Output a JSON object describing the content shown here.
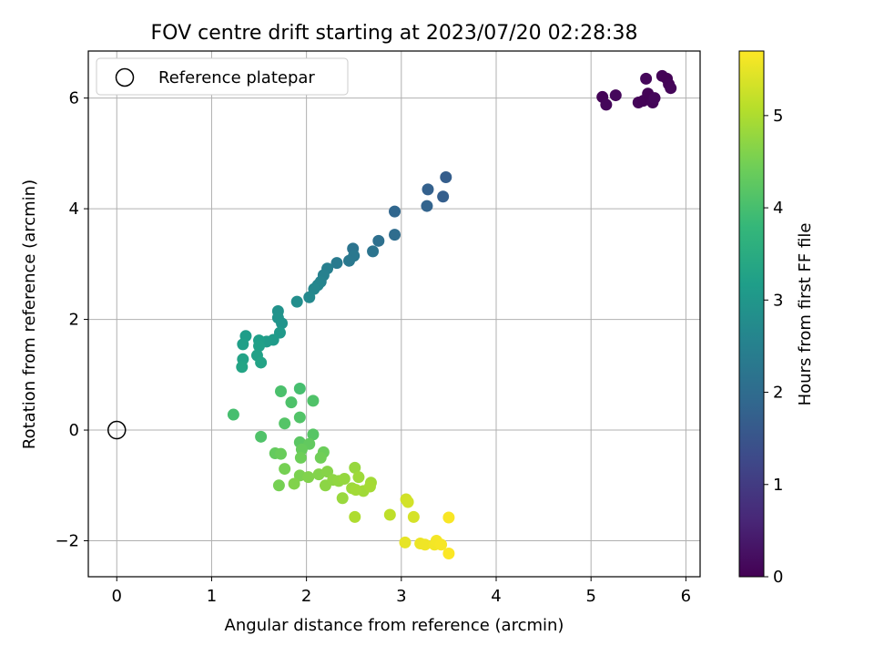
{
  "chart_data": {
    "type": "scatter",
    "title": "FOV centre drift starting at 2023/07/20 02:28:38",
    "xlabel": "Angular distance from reference (arcmin)",
    "ylabel": "Rotation from reference (arcmin)",
    "xlim": [
      -0.3,
      6.15
    ],
    "ylim": [
      -2.65,
      6.85
    ],
    "xticks": [
      0,
      1,
      2,
      3,
      4,
      5,
      6
    ],
    "yticks": [
      -2,
      0,
      2,
      4,
      6
    ],
    "ytick_labels": [
      "−2",
      "0",
      "2",
      "4",
      "6"
    ],
    "grid": true,
    "legend": {
      "placement": "top-left",
      "entries": [
        "Reference platepar"
      ]
    },
    "reference": {
      "x": 0,
      "y": 0,
      "label": "Reference platepar"
    },
    "colorbar": {
      "label": "Hours from first FF file",
      "range": [
        0,
        5.7
      ],
      "ticks": [
        0,
        1,
        2,
        3,
        4,
        5
      ],
      "colormap": "viridis",
      "stops": [
        "#440154",
        "#482878",
        "#3e4989",
        "#31688e",
        "#26828e",
        "#1f9e89",
        "#35b779",
        "#6ece58",
        "#b5de2b",
        "#fde725"
      ]
    },
    "points": [
      [
        5.12,
        6.02,
        0.05
      ],
      [
        5.16,
        5.88,
        0.1
      ],
      [
        5.26,
        6.05,
        0.12
      ],
      [
        5.5,
        5.92,
        0.08
      ],
      [
        5.55,
        5.95,
        0.05
      ],
      [
        5.58,
        6.35,
        0.1
      ],
      [
        5.6,
        6.08,
        0.06
      ],
      [
        5.62,
        6.02,
        0.04
      ],
      [
        5.65,
        5.92,
        0.07
      ],
      [
        5.67,
        6.0,
        0.1
      ],
      [
        5.75,
        6.4,
        0.05
      ],
      [
        5.8,
        6.35,
        0.03
      ],
      [
        5.82,
        6.25,
        0.06
      ],
      [
        5.84,
        6.18,
        0.08
      ],
      [
        3.47,
        4.57,
        1.7
      ],
      [
        3.28,
        4.35,
        1.75
      ],
      [
        3.44,
        4.22,
        1.72
      ],
      [
        3.27,
        4.05,
        1.82
      ],
      [
        2.93,
        3.95,
        1.88
      ],
      [
        2.93,
        3.53,
        2.02
      ],
      [
        2.76,
        3.42,
        2.1
      ],
      [
        2.7,
        3.23,
        2.2
      ],
      [
        2.49,
        3.28,
        2.2
      ],
      [
        2.5,
        3.15,
        2.28
      ],
      [
        2.45,
        3.06,
        2.3
      ],
      [
        2.32,
        3.02,
        2.35
      ],
      [
        2.22,
        2.92,
        2.45
      ],
      [
        2.18,
        2.8,
        2.5
      ],
      [
        2.15,
        2.68,
        2.55
      ],
      [
        2.12,
        2.62,
        2.6
      ],
      [
        2.08,
        2.55,
        2.65
      ],
      [
        2.03,
        2.4,
        2.7
      ],
      [
        1.9,
        2.32,
        2.8
      ],
      [
        1.7,
        2.15,
        2.9
      ],
      [
        1.7,
        2.03,
        2.92
      ],
      [
        1.74,
        1.93,
        2.95
      ],
      [
        1.72,
        1.76,
        3.05
      ],
      [
        1.65,
        1.63,
        3.1
      ],
      [
        1.58,
        1.6,
        3.12
      ],
      [
        1.36,
        1.7,
        3.15
      ],
      [
        1.5,
        1.62,
        3.18
      ],
      [
        1.33,
        1.55,
        3.2
      ],
      [
        1.5,
        1.52,
        3.22
      ],
      [
        1.48,
        1.35,
        3.25
      ],
      [
        1.33,
        1.28,
        3.28
      ],
      [
        1.52,
        1.22,
        3.3
      ],
      [
        1.32,
        1.14,
        3.32
      ],
      [
        1.23,
        0.28,
        4.0
      ],
      [
        1.73,
        0.7,
        4.05
      ],
      [
        1.93,
        0.75,
        4.0
      ],
      [
        1.84,
        0.5,
        4.08
      ],
      [
        2.07,
        0.53,
        4.1
      ],
      [
        1.93,
        0.23,
        4.12
      ],
      [
        1.77,
        0.12,
        4.15
      ],
      [
        1.52,
        -0.12,
        4.1
      ],
      [
        2.07,
        -0.08,
        4.18
      ],
      [
        1.93,
        -0.22,
        4.22
      ],
      [
        2.03,
        -0.25,
        4.3
      ],
      [
        1.95,
        -0.35,
        4.35
      ],
      [
        1.67,
        -0.42,
        4.32
      ],
      [
        1.73,
        -0.43,
        4.38
      ],
      [
        2.18,
        -0.4,
        4.4
      ],
      [
        2.15,
        -0.5,
        4.45
      ],
      [
        1.94,
        -0.5,
        4.42
      ],
      [
        1.77,
        -0.7,
        4.5
      ],
      [
        1.93,
        -0.82,
        4.55
      ],
      [
        2.02,
        -0.85,
        4.6
      ],
      [
        2.13,
        -0.8,
        4.62
      ],
      [
        2.22,
        -0.75,
        4.65
      ],
      [
        1.71,
        -1.0,
        4.5
      ],
      [
        1.87,
        -0.97,
        4.6
      ],
      [
        2.2,
        -1.0,
        4.7
      ],
      [
        2.28,
        -0.9,
        4.72
      ],
      [
        2.34,
        -0.92,
        4.75
      ],
      [
        2.4,
        -0.88,
        4.78
      ],
      [
        2.51,
        -0.68,
        4.8
      ],
      [
        2.38,
        -1.23,
        4.82
      ],
      [
        2.48,
        -1.05,
        4.85
      ],
      [
        2.55,
        -0.85,
        4.85
      ],
      [
        2.6,
        -1.1,
        4.88
      ],
      [
        2.68,
        -0.95,
        4.9
      ],
      [
        2.67,
        -1.02,
        4.92
      ],
      [
        2.52,
        -1.08,
        4.9
      ],
      [
        2.51,
        -1.57,
        5.0
      ],
      [
        2.88,
        -1.53,
        5.15
      ],
      [
        3.05,
        -1.25,
        5.3
      ],
      [
        3.07,
        -1.3,
        5.32
      ],
      [
        3.13,
        -1.57,
        5.35
      ],
      [
        3.04,
        -2.03,
        5.5
      ],
      [
        3.2,
        -2.05,
        5.55
      ],
      [
        3.25,
        -2.07,
        5.58
      ],
      [
        3.35,
        -2.07,
        5.6
      ],
      [
        3.37,
        -2.0,
        5.62
      ],
      [
        3.42,
        -2.07,
        5.64
      ],
      [
        3.5,
        -1.58,
        5.66
      ],
      [
        3.5,
        -2.23,
        5.68
      ]
    ]
  }
}
